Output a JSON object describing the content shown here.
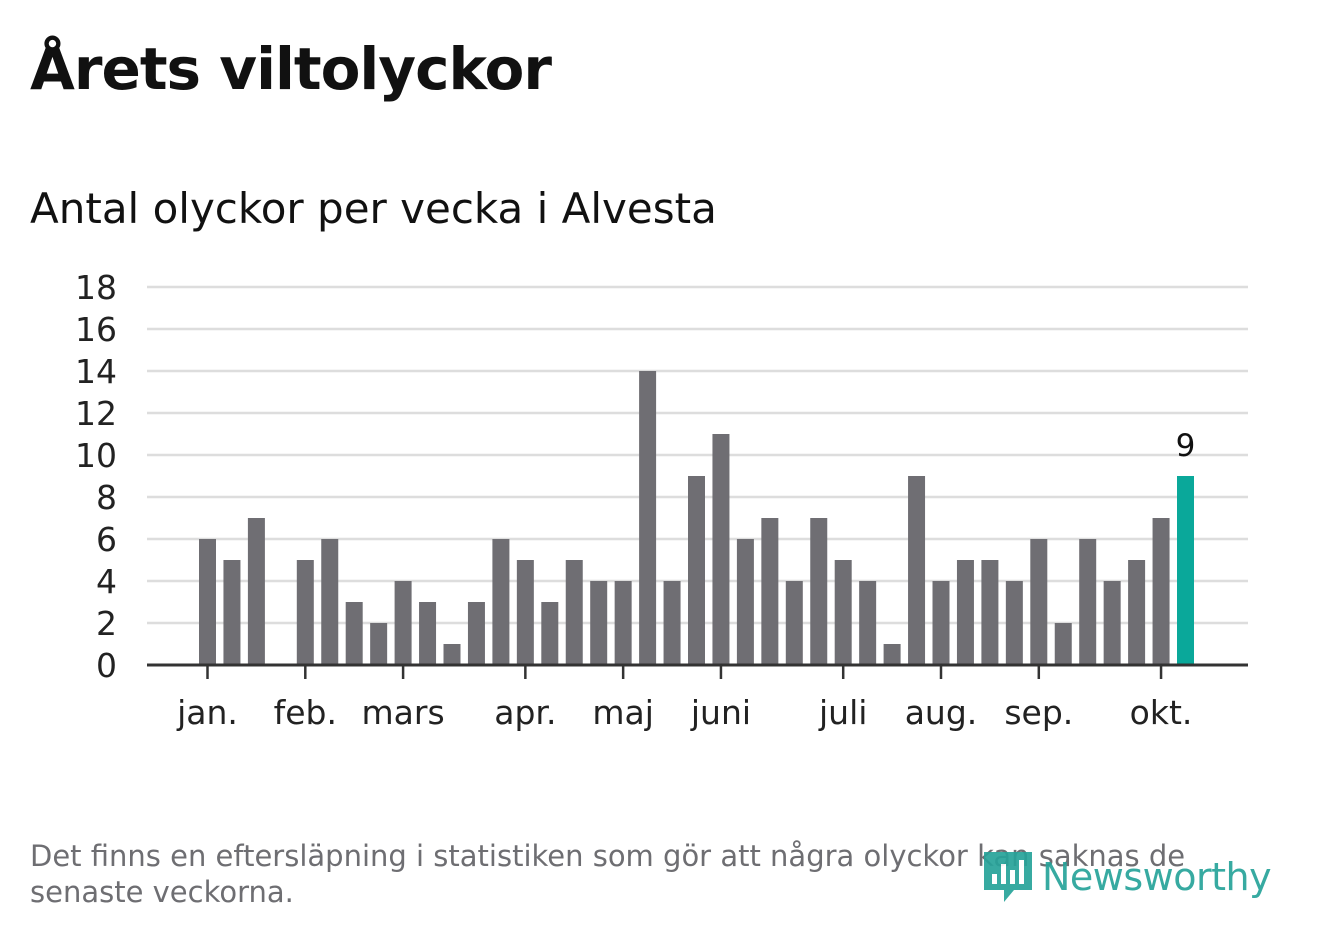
{
  "title": "Årets viltolyckor",
  "subtitle": "Antal olyckor per vecka i Alvesta",
  "footnote": "Det finns en eftersläpning i statistiken som gör att några olyckor kan saknas de senaste veckorna.",
  "brand": {
    "name": "Newsworthy",
    "icon": "newsworthy-logo-icon",
    "color": "#27a39a"
  },
  "colors": {
    "bar": "#6f6e73",
    "highlight": "#0aa89a",
    "grid": "#dddddd",
    "axis": "#333333"
  },
  "chart_data": {
    "type": "bar",
    "x_unit": "week",
    "weeks": [
      1,
      2,
      3,
      4,
      5,
      6,
      7,
      8,
      9,
      10,
      11,
      12,
      13,
      14,
      15,
      16,
      17,
      18,
      19,
      20,
      21,
      22,
      23,
      24,
      25,
      26,
      27,
      28,
      29,
      30,
      31,
      32,
      33,
      34,
      35,
      36,
      37,
      38,
      39,
      40,
      41
    ],
    "values": [
      6,
      5,
      7,
      0,
      5,
      6,
      3,
      2,
      4,
      3,
      1,
      3,
      6,
      5,
      3,
      5,
      4,
      4,
      14,
      4,
      9,
      11,
      6,
      7,
      4,
      7,
      5,
      4,
      1,
      9,
      4,
      5,
      5,
      4,
      6,
      2,
      6,
      4,
      5,
      7,
      9
    ],
    "highlight_week": 41,
    "highlight_label": "9",
    "ylim": [
      0,
      18
    ],
    "yticks": [
      0,
      2,
      4,
      6,
      8,
      10,
      12,
      14,
      16,
      18
    ],
    "month_ticks": [
      {
        "label": "jan.",
        "week": 1
      },
      {
        "label": "feb.",
        "week": 5
      },
      {
        "label": "mars",
        "week": 9
      },
      {
        "label": "apr.",
        "week": 14
      },
      {
        "label": "maj",
        "week": 18
      },
      {
        "label": "juni",
        "week": 22
      },
      {
        "label": "juli",
        "week": 27
      },
      {
        "label": "aug.",
        "week": 31
      },
      {
        "label": "sep.",
        "week": 35
      },
      {
        "label": "okt.",
        "week": 40
      }
    ],
    "grid": true,
    "legend": "none"
  }
}
